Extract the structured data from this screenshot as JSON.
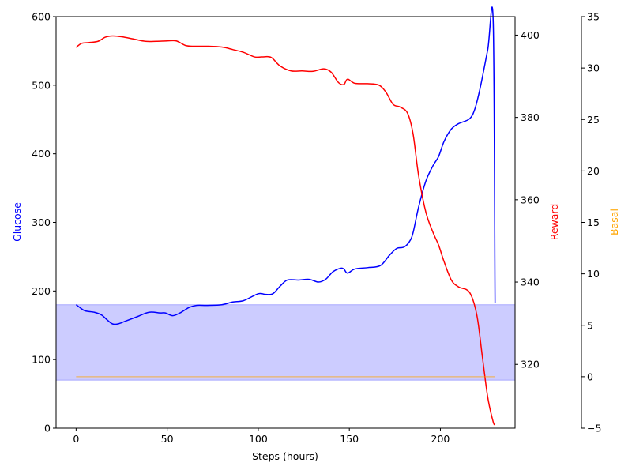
{
  "chart_data": {
    "type": "line",
    "xlabel": "Steps (hours)",
    "xlim": [
      -11,
      241
    ],
    "xticks": [
      0,
      50,
      100,
      150,
      200
    ],
    "axes": {
      "glucose": {
        "label": "Glucose",
        "color": "#0000ff",
        "ylim": [
          0,
          600
        ],
        "ticks": [
          0,
          100,
          200,
          300,
          400,
          500,
          600
        ]
      },
      "reward": {
        "label": "Reward",
        "color": "#ff0000",
        "ylim": [
          304.5,
          404.5
        ],
        "ticks": [
          320,
          340,
          360,
          380,
          400
        ]
      },
      "basal": {
        "label": "Basal",
        "color": "#ffa500",
        "ylim": [
          -5,
          35
        ],
        "ticks": [
          -5,
          0,
          5,
          10,
          15,
          20,
          25,
          30,
          35
        ]
      }
    },
    "target_band": {
      "axis": "glucose",
      "from": 70,
      "to": 180,
      "color": "#0000ff"
    },
    "series": [
      {
        "axis": "glucose",
        "color": "#0000ff",
        "x": [
          0,
          2,
          5,
          10,
          14,
          17,
          20,
          23,
          27,
          33,
          40,
          46,
          49,
          53,
          57,
          62,
          66,
          72,
          80,
          86,
          92,
          100,
          104,
          108,
          112,
          116,
          122,
          128,
          133,
          137,
          141,
          145,
          147,
          149,
          153,
          160,
          167,
          172,
          176,
          180,
          183,
          185,
          188,
          192,
          196,
          199,
          202,
          206,
          210,
          216,
          219,
          222,
          226,
          229,
          230
        ],
        "y": [
          180,
          176,
          171,
          169,
          165,
          158,
          152,
          152,
          156,
          162,
          169,
          168,
          168,
          164,
          168,
          176,
          179,
          179,
          180,
          184,
          186,
          196,
          195,
          196,
          207,
          216,
          216,
          217,
          213,
          217,
          228,
          233,
          232,
          226,
          232,
          234,
          237,
          252,
          262,
          264,
          272,
          285,
          322,
          360,
          383,
          396,
          418,
          436,
          444,
          451,
          466,
          498,
          552,
          592,
          183
        ]
      },
      {
        "axis": "reward",
        "color": "#ff0000",
        "x": [
          0,
          3,
          7,
          12,
          16,
          20,
          25,
          32,
          38,
          44,
          50,
          55,
          60,
          65,
          72,
          80,
          86,
          92,
          98,
          102,
          107,
          112,
          118,
          124,
          130,
          136,
          140,
          144,
          147,
          149,
          153,
          160,
          166,
          170,
          174,
          178,
          182,
          185,
          188,
          192,
          196,
          199,
          202,
          206,
          210,
          216,
          220,
          223,
          226,
          229,
          230
        ],
        "y": [
          397,
          398,
          398.2,
          398.5,
          399.5,
          399.8,
          399.6,
          399,
          398.5,
          398.5,
          398.6,
          398.6,
          397.5,
          397.3,
          397.3,
          397.1,
          396.5,
          395.8,
          394.7,
          394.7,
          394.6,
          392.5,
          391.3,
          391.3,
          391.2,
          391.8,
          391,
          388.5,
          388,
          389.3,
          388.3,
          388.2,
          387.9,
          386.2,
          383.2,
          382.5,
          381,
          376,
          366,
          357,
          352,
          349,
          345,
          340.5,
          338.8,
          337.5,
          332,
          322,
          312,
          306,
          305.5
        ]
      },
      {
        "axis": "basal",
        "color": "#ffa500",
        "x": [
          0,
          230
        ],
        "y": [
          0,
          0
        ]
      }
    ]
  }
}
